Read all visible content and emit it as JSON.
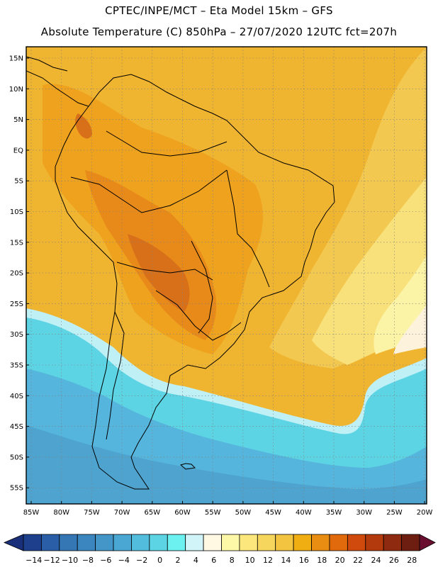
{
  "header": {
    "line1": "CPTEC/INPE/MCT –   Eta Model 15km – GFS",
    "line2": "Absolute Temperature (C) 850hPa – 27/07/2020 12UTC fct=207h"
  },
  "axes": {
    "lat_labels": [
      "15N",
      "10N",
      "5N",
      "EQ",
      "5S",
      "10S",
      "15S",
      "20S",
      "25S",
      "30S",
      "35S",
      "40S",
      "45S",
      "50S",
      "55S"
    ],
    "lon_labels": [
      "85W",
      "80W",
      "75W",
      "70W",
      "65W",
      "60W",
      "55W",
      "50W",
      "45W",
      "40W",
      "35W",
      "30W",
      "25W",
      "20W"
    ]
  },
  "colorbar": {
    "labels": [
      "-14",
      "-12",
      "-10",
      "-8",
      "-6",
      "-4",
      "-2",
      "0",
      "2",
      "4",
      "6",
      "8",
      "10",
      "12",
      "14",
      "16",
      "18",
      "20",
      "22",
      "24",
      "26",
      "28"
    ],
    "colors": [
      "#1e3f8c",
      "#2a5ea6",
      "#3576b5",
      "#3c86bf",
      "#4496c8",
      "#4aa7d3",
      "#52bddd",
      "#5dd4e4",
      "#6cf0f0",
      "#d0f4f8",
      "#fff8e3",
      "#fdf7a8",
      "#fbe77b",
      "#f7d65e",
      "#f2c43f",
      "#f0ae12",
      "#e88d12",
      "#e06a0c",
      "#cf4a0c",
      "#b23a0c",
      "#8e2a10",
      "#6e1e10"
    ]
  },
  "map_colors": {
    "deep_blue": "#4ea4cf",
    "blue": "#56b5dc",
    "cyan": "#5dd4e4",
    "light_cyan": "#bff0f6",
    "cream": "#fdf3dc",
    "pale_yellow": "#fbf3a6",
    "yellow": "#f8e07a",
    "gold": "#f2c850",
    "light_orange": "#f0b530",
    "orange": "#eea21e",
    "dark_orange": "#e88a1a",
    "red_orange": "#d8701a",
    "coast": "#000000",
    "grid": "#7f7f7f"
  }
}
